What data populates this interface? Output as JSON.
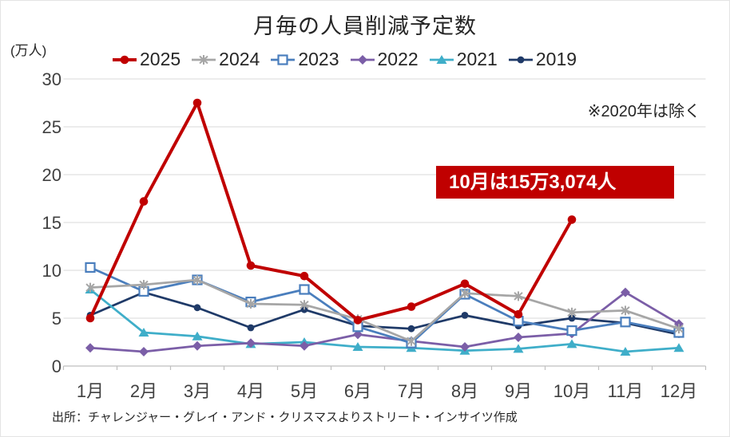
{
  "header": {
    "title": "月毎の人員削減予定数",
    "unit_label": "(万人)"
  },
  "annotations": {
    "note": "※2020年は除く",
    "callout": "10月は15万3,074人"
  },
  "footer": {
    "source": "出所：チャレンジャー・グレイ・アンド・クリスマスよりストリート・インサイツ作成"
  },
  "colors": {
    "accent_red": "#c00000",
    "gridline": "#d9d9d9",
    "axis_line": "#bfbfbf",
    "axis_text": "#404040",
    "callout_bg": "#c00000",
    "callout_text": "#ffffff"
  },
  "chart_data": {
    "type": "line",
    "title": "月毎の人員削減予定数",
    "ylabel": "(万人)",
    "xlabel": "",
    "ylim": [
      0,
      30
    ],
    "yticks": [
      0,
      5,
      10,
      15,
      20,
      25,
      30
    ],
    "grid": true,
    "legend_position": "top",
    "categories": [
      "1月",
      "2月",
      "3月",
      "4月",
      "5月",
      "6月",
      "7月",
      "8月",
      "9月",
      "10月",
      "11月",
      "12月"
    ],
    "series": [
      {
        "name": "2025",
        "color": "#c00000",
        "marker": "circle",
        "line_width": 4,
        "values": [
          5.0,
          17.2,
          27.5,
          10.5,
          9.4,
          4.8,
          6.2,
          8.6,
          5.4,
          15.3,
          null,
          null
        ]
      },
      {
        "name": "2024",
        "color": "#a6a6a6",
        "marker": "star",
        "line_width": 2.75,
        "values": [
          8.2,
          8.5,
          9.0,
          6.5,
          6.4,
          4.9,
          2.6,
          7.6,
          7.3,
          5.6,
          5.8,
          3.9
        ]
      },
      {
        "name": "2023",
        "color": "#4a7ebd",
        "marker": "open-square",
        "line_width": 2.75,
        "values": [
          10.3,
          7.8,
          9.0,
          6.7,
          8.0,
          4.1,
          2.4,
          7.5,
          4.7,
          3.7,
          4.6,
          3.5
        ]
      },
      {
        "name": "2022",
        "color": "#7b5ea7",
        "marker": "diamond",
        "line_width": 2.75,
        "values": [
          1.9,
          1.5,
          2.1,
          2.4,
          2.1,
          3.3,
          2.6,
          2.0,
          3.0,
          3.4,
          7.7,
          4.4
        ]
      },
      {
        "name": "2021",
        "color": "#3faec9",
        "marker": "triangle",
        "line_width": 2.75,
        "values": [
          8.0,
          3.5,
          3.1,
          2.3,
          2.5,
          2.0,
          1.9,
          1.6,
          1.8,
          2.3,
          1.5,
          1.9
        ]
      },
      {
        "name": "2019",
        "color": "#1f3a68",
        "marker": "small-circle",
        "line_width": 2.75,
        "values": [
          5.3,
          7.7,
          6.1,
          4.0,
          5.9,
          4.2,
          3.9,
          5.3,
          4.2,
          5.0,
          4.5,
          3.3
        ]
      }
    ]
  }
}
